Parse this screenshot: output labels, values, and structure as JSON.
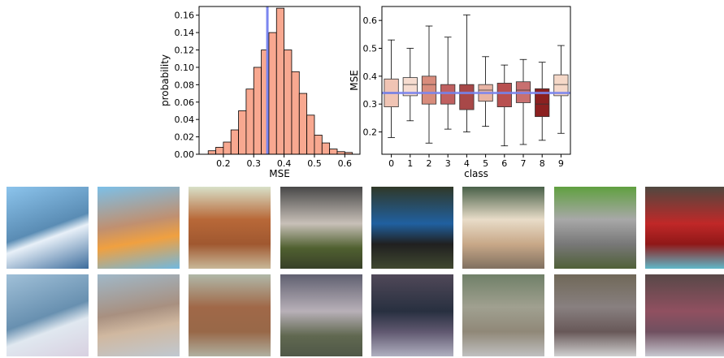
{
  "chart_data": [
    {
      "type": "histogram",
      "xlabel": "MSE",
      "ylabel": "probability",
      "bins": [
        0.15,
        0.175,
        0.2,
        0.225,
        0.25,
        0.275,
        0.3,
        0.325,
        0.35,
        0.375,
        0.4,
        0.425,
        0.45,
        0.475,
        0.5,
        0.525,
        0.55,
        0.575,
        0.6,
        0.625
      ],
      "values": [
        0.004,
        0.008,
        0.014,
        0.028,
        0.05,
        0.075,
        0.1,
        0.12,
        0.14,
        0.168,
        0.12,
        0.095,
        0.07,
        0.045,
        0.022,
        0.013,
        0.006,
        0.003,
        0.002
      ],
      "color": "#f8a890",
      "vline": {
        "value": 0.345,
        "color": "#7b86f0"
      },
      "xlim": [
        0.12,
        0.65
      ],
      "xticks": [
        0.2,
        0.3,
        0.4,
        0.5,
        0.6
      ],
      "ylim": [
        0,
        0.17
      ],
      "yticks": [
        {
          "value": 0,
          "label": "0.00"
        },
        {
          "value": 0.02,
          "label": "0.02"
        },
        {
          "value": 0.04,
          "label": "0.04"
        },
        {
          "value": 0.06,
          "label": "0.06"
        },
        {
          "value": 0.08,
          "label": "0.08"
        },
        {
          "value": 0.1,
          "label": "0.10"
        },
        {
          "value": 0.12,
          "label": "0.12"
        },
        {
          "value": 0.14,
          "label": "0.14"
        },
        {
          "value": 0.16,
          "label": "0.16"
        }
      ]
    },
    {
      "type": "box",
      "xlabel": "class",
      "ylabel": "MSE",
      "categories": [
        "0",
        "1",
        "2",
        "3",
        "4",
        "5",
        "6",
        "7",
        "8",
        "9"
      ],
      "boxes": [
        {
          "whislo": 0.18,
          "q1": 0.29,
          "med": 0.34,
          "q3": 0.39,
          "whishi": 0.53,
          "color": "#f0c4b4"
        },
        {
          "whislo": 0.24,
          "q1": 0.33,
          "med": 0.37,
          "q3": 0.395,
          "whishi": 0.5,
          "color": "#f6dcd0"
        },
        {
          "whislo": 0.16,
          "q1": 0.3,
          "med": 0.37,
          "q3": 0.4,
          "whishi": 0.58,
          "color": "#d88c7c"
        },
        {
          "whislo": 0.21,
          "q1": 0.3,
          "med": 0.34,
          "q3": 0.37,
          "whishi": 0.54,
          "color": "#c06060"
        },
        {
          "whislo": 0.2,
          "q1": 0.28,
          "med": 0.34,
          "q3": 0.37,
          "whishi": 0.62,
          "color": "#a84848"
        },
        {
          "whislo": 0.22,
          "q1": 0.31,
          "med": 0.35,
          "q3": 0.37,
          "whishi": 0.47,
          "color": "#e8b4a4"
        },
        {
          "whislo": 0.15,
          "q1": 0.29,
          "med": 0.34,
          "q3": 0.375,
          "whishi": 0.44,
          "color": "#b85050"
        },
        {
          "whislo": 0.155,
          "q1": 0.305,
          "med": 0.35,
          "q3": 0.38,
          "whishi": 0.46,
          "color": "#c87070"
        },
        {
          "whislo": 0.17,
          "q1": 0.255,
          "med": 0.3,
          "q3": 0.355,
          "whishi": 0.45,
          "color": "#8b2020"
        },
        {
          "whislo": 0.195,
          "q1": 0.33,
          "med": 0.37,
          "q3": 0.405,
          "whishi": 0.51,
          "color": "#f5d8c8"
        }
      ],
      "hline": {
        "value": 0.34,
        "color": "#7b86f0"
      },
      "ylim": [
        0.12,
        0.65
      ],
      "yticks": [
        0.2,
        0.3,
        0.4,
        0.5,
        0.6
      ]
    }
  ]
}
